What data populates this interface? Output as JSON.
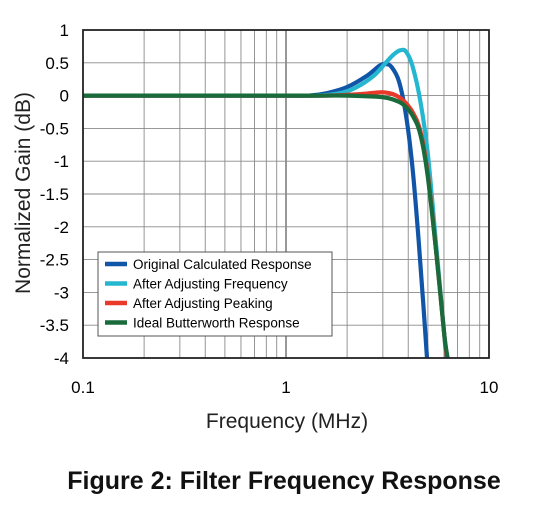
{
  "figure_caption": "Figure 2:  Filter Frequency Response",
  "chart_data": {
    "type": "line",
    "title": "",
    "xlabel": "Frequency (MHz)",
    "ylabel": "Normalized Gain (dB)",
    "x_scale": "log",
    "xlim": [
      0.1,
      10
    ],
    "ylim": [
      -4,
      1
    ],
    "x_ticks": [
      0.1,
      1,
      10
    ],
    "x_tick_labels": [
      "0.1",
      "1",
      "10"
    ],
    "y_ticks": [
      1,
      0.5,
      0,
      -0.5,
      -1,
      -1.5,
      -2,
      -2.5,
      -3,
      -3.5,
      -4
    ],
    "y_tick_labels": [
      "1",
      "0.5",
      "0",
      "-0.5",
      "-1",
      "-1.5",
      "-2",
      "-2.5",
      "-3",
      "-3.5",
      "-4"
    ],
    "grid": true,
    "legend_position": "bottom-left",
    "series": [
      {
        "name": "Original Calculated Response",
        "color": "#1155a8",
        "x": [
          0.1,
          0.5,
          1.0,
          1.3,
          1.6,
          2.0,
          2.5,
          2.9,
          3.1,
          3.3,
          3.6,
          3.9,
          4.2,
          4.5,
          4.75,
          4.95
        ],
        "y": [
          0,
          0,
          0,
          0,
          0.04,
          0.13,
          0.3,
          0.46,
          0.48,
          0.44,
          0.22,
          -0.3,
          -1.1,
          -2.2,
          -3.2,
          -4
        ]
      },
      {
        "name": "After Adjusting Frequency",
        "color": "#26b7d0",
        "x": [
          0.1,
          0.5,
          1.0,
          1.4,
          1.8,
          2.2,
          2.7,
          3.1,
          3.4,
          3.65,
          3.9,
          4.2,
          4.6,
          5.0,
          5.5,
          6.0,
          6.15
        ],
        "y": [
          0,
          0,
          0,
          0,
          0.03,
          0.12,
          0.3,
          0.5,
          0.63,
          0.69,
          0.67,
          0.45,
          -0.1,
          -0.9,
          -2.3,
          -3.6,
          -4
        ]
      },
      {
        "name": "After Adjusting Peaking",
        "color": "#e8392a",
        "x": [
          0.1,
          0.5,
          1.0,
          1.5,
          2.0,
          2.5,
          2.9,
          3.2,
          3.5,
          3.8,
          4.2,
          4.6,
          5.0,
          5.5,
          6.0,
          6.2
        ],
        "y": [
          0,
          0,
          0,
          0,
          0.01,
          0.03,
          0.05,
          0.04,
          0.0,
          -0.08,
          -0.25,
          -0.55,
          -1.2,
          -2.4,
          -3.6,
          -4
        ]
      },
      {
        "name": "Ideal Butterworth Response",
        "color": "#1a6b3c",
        "x": [
          0.1,
          0.5,
          1.0,
          1.5,
          2.0,
          2.5,
          2.9,
          3.2,
          3.5,
          3.8,
          4.2,
          4.6,
          5.0,
          5.5,
          6.0,
          6.25
        ],
        "y": [
          0,
          0,
          0,
          0,
          0,
          -0.01,
          -0.02,
          -0.04,
          -0.08,
          -0.14,
          -0.3,
          -0.6,
          -1.25,
          -2.4,
          -3.6,
          -4
        ]
      }
    ]
  }
}
